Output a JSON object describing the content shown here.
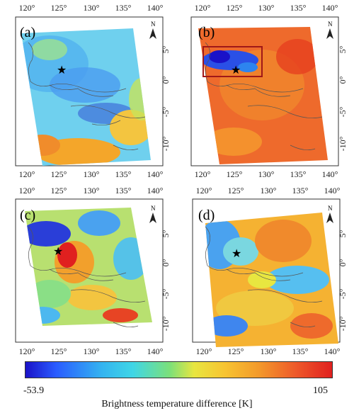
{
  "axis": {
    "lon_ticks": [
      "120°",
      "125°",
      "130°",
      "135°",
      "140°"
    ],
    "lat_ticks": [
      "5°",
      "0°",
      "-5°",
      "-10°"
    ]
  },
  "panels": [
    {
      "label": "(a)",
      "north": "N"
    },
    {
      "label": "(b)",
      "north": "N"
    },
    {
      "label": "(c)",
      "north": "N"
    },
    {
      "label": "(d)",
      "north": "N"
    }
  ],
  "colorbar": {
    "min_label": "-53.9",
    "max_label": "105",
    "title": "Brightness temperature difference [K]",
    "colors": [
      "#1a12c8",
      "#2a5cff",
      "#34b4f0",
      "#7be07a",
      "#e8e640",
      "#f39a2b",
      "#e0201f"
    ]
  },
  "markers": {
    "epicenter_symbol": "★"
  }
}
